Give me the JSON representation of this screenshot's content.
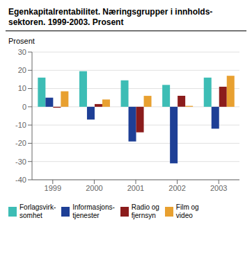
{
  "chart_data": {
    "type": "bar",
    "title": "Egenkapitalrentabilitet. Næringsgrupper i innholds-\nsektoren. 1999-2003. Prosent",
    "y_label": "Prosent",
    "categories": [
      "1999",
      "2000",
      "2001",
      "2002",
      "2003"
    ],
    "series": [
      {
        "name": "Forlagsvirk-\nsomhet",
        "color": "#3dbdb5",
        "values": [
          16,
          19.5,
          14.5,
          12,
          16
        ]
      },
      {
        "name": "Informasjons-\ntjenester",
        "color": "#1e3f96",
        "values": [
          5,
          -7,
          -19,
          -31,
          -12
        ]
      },
      {
        "name": "Radio og\nfjernsyn",
        "color": "#8b1c1c",
        "values": [
          -0.5,
          1.5,
          -14,
          6,
          11
        ]
      },
      {
        "name": "Film og\nvideo",
        "color": "#e8a030",
        "values": [
          8.5,
          4,
          6,
          0.5,
          17
        ]
      }
    ],
    "ylim": [
      -40,
      30
    ],
    "yticks": [
      -40,
      -30,
      -20,
      -10,
      0,
      10,
      20,
      30
    ],
    "grid": true
  }
}
